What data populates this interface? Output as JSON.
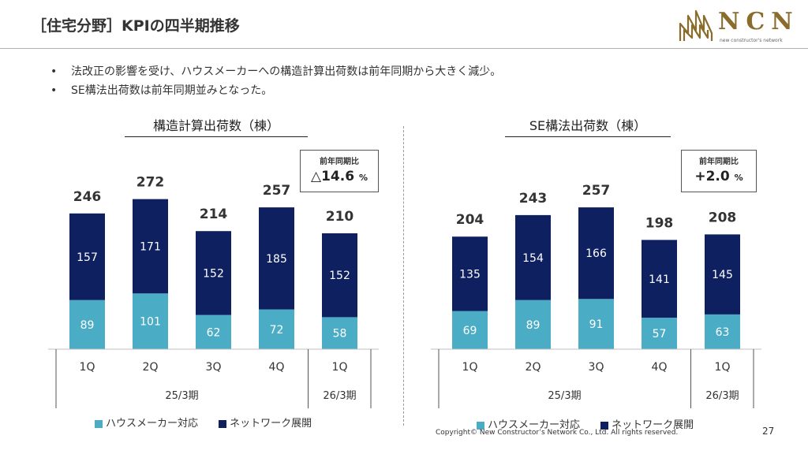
{
  "title": "［住宅分野］KPIの四半期推移",
  "logo": {
    "text": "NCN",
    "tagline": "new constructor's network",
    "color": "#8a6d2c"
  },
  "bullets": [
    "法改正の影響を受け、ハウスメーカーへの構造計算出荷数は前年同期から大きく減少。",
    "SE構法出荷数は前年同期並みとなった。"
  ],
  "colors": {
    "house_maker": "#4bacc6",
    "network": "#0e2060"
  },
  "legend": {
    "house_maker": "ハウスメーカー対応",
    "network": "ネットワーク展開"
  },
  "chart_data": [
    {
      "type": "bar",
      "stacked": true,
      "title": "構造計算出荷数（棟）",
      "categories": [
        "1Q",
        "2Q",
        "3Q",
        "4Q",
        "1Q"
      ],
      "groups": [
        {
          "label": "25/3期",
          "span": 4
        },
        {
          "label": "26/3期",
          "span": 1
        }
      ],
      "series": [
        {
          "name": "ハウスメーカー対応",
          "values": [
            89,
            101,
            62,
            72,
            58
          ]
        },
        {
          "name": "ネットワーク展開",
          "values": [
            157,
            171,
            152,
            185,
            152
          ]
        }
      ],
      "totals": [
        246,
        272,
        214,
        257,
        210
      ],
      "yoy": {
        "label": "前年同期比",
        "value": "△14.6",
        "unit": "%"
      }
    },
    {
      "type": "bar",
      "stacked": true,
      "title": "SE構法出荷数（棟）",
      "categories": [
        "1Q",
        "2Q",
        "3Q",
        "4Q",
        "1Q"
      ],
      "groups": [
        {
          "label": "25/3期",
          "span": 4
        },
        {
          "label": "26/3期",
          "span": 1
        }
      ],
      "series": [
        {
          "name": "ハウスメーカー対応",
          "values": [
            69,
            89,
            91,
            57,
            63
          ]
        },
        {
          "name": "ネットワーク展開",
          "values": [
            135,
            154,
            166,
            141,
            145
          ]
        }
      ],
      "totals": [
        204,
        243,
        257,
        198,
        208
      ],
      "yoy": {
        "label": "前年同期比",
        "value": "+2.0",
        "unit": "%"
      }
    }
  ],
  "footer": {
    "copyright": "Copyright© New Constructor’s Network Co., Ltd. All rights reserved.",
    "page": "27"
  }
}
